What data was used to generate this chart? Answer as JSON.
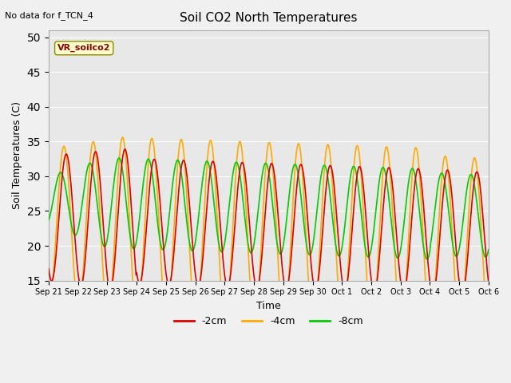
{
  "title": "Soil CO2 North Temperatures",
  "subtitle": "No data for f_TCN_4",
  "xlabel": "Time",
  "ylabel": "Soil Temperatures (C)",
  "ylim": [
    15,
    51
  ],
  "yticks": [
    15,
    20,
    25,
    30,
    35,
    40,
    45,
    50
  ],
  "legend_label": "VR_soilco2",
  "series_labels": [
    "-2cm",
    "-4cm",
    "-8cm"
  ],
  "series_colors": [
    "#dd0000",
    "#ffaa00",
    "#00cc00"
  ],
  "background_color": "#e8e8e8",
  "x_dates": [
    "Sep 21",
    "Sep 22",
    "Sep 23",
    "Sep 24",
    "Sep 25",
    "Sep 26",
    "Sep 27",
    "Sep 28",
    "Sep 29",
    "Sep 30",
    "Oct 1",
    "Oct 2",
    "Oct 3",
    "Oct 4",
    "Oct 5",
    "Oct 6"
  ],
  "n_days": 15,
  "points_per_day": 48
}
